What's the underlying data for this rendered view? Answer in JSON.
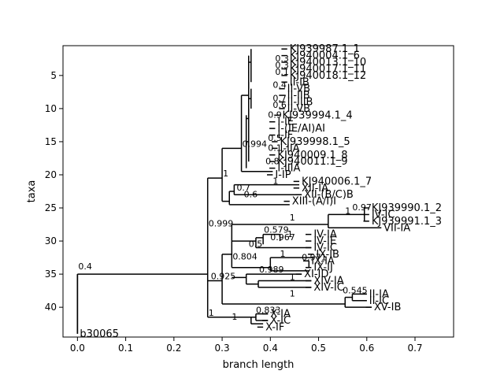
{
  "chart_data": {
    "type": "tree",
    "xlabel": "branch length",
    "ylabel": "taxa",
    "xlim": [
      -0.03,
      0.78
    ],
    "ylim": [
      44.5,
      0.5
    ],
    "xticks": [
      {
        "v": 0.0,
        "label": "0.0"
      },
      {
        "v": 0.1,
        "label": "0.1"
      },
      {
        "v": 0.2,
        "label": "0.2"
      },
      {
        "v": 0.3,
        "label": "0.3"
      },
      {
        "v": 0.4,
        "label": "0.4"
      },
      {
        "v": 0.5,
        "label": "0.5"
      },
      {
        "v": 0.6,
        "label": "0.6"
      },
      {
        "v": 0.7,
        "label": "0.7"
      }
    ],
    "yticks": [
      {
        "v": 5,
        "label": "5"
      },
      {
        "v": 10,
        "label": "10"
      },
      {
        "v": 15,
        "label": "15"
      },
      {
        "v": 20,
        "label": "20"
      },
      {
        "v": 25,
        "label": "25"
      },
      {
        "v": 30,
        "label": "30"
      },
      {
        "v": 35,
        "label": "35"
      },
      {
        "v": 40,
        "label": "40"
      }
    ],
    "leaves": [
      {
        "name": "KJ939987.1_1",
        "x": 0.435,
        "y": 1
      },
      {
        "name": "KJ940004.1_6",
        "x": 0.435,
        "y": 2
      },
      {
        "name": "KJ940013.1_10",
        "x": 0.435,
        "y": 3
      },
      {
        "name": "KJ940017.1_11",
        "x": 0.435,
        "y": 4
      },
      {
        "name": "KJ940018.1_12",
        "x": 0.435,
        "y": 5
      },
      {
        "name": "II-IB",
        "x": 0.435,
        "y": 6
      },
      {
        "name": "II-VB",
        "x": 0.43,
        "y": 7
      },
      {
        "name": "II-IIB",
        "x": 0.43,
        "y": 8
      },
      {
        "name": "II-IIIB",
        "x": 0.43,
        "y": 9
      },
      {
        "name": "II-VB",
        "x": 0.43,
        "y": 10
      },
      {
        "name": "KJ939994.1_4",
        "x": 0.42,
        "y": 11
      },
      {
        "name": "I-IE",
        "x": 0.41,
        "y": 12
      },
      {
        "name": "I-(IE/AI)AI",
        "x": 0.41,
        "y": 13
      },
      {
        "name": "I-IF",
        "x": 0.41,
        "y": 14
      },
      {
        "name": "KJ939998.1_5",
        "x": 0.415,
        "y": 15
      },
      {
        "name": "I-IIA",
        "x": 0.415,
        "y": 16
      },
      {
        "name": "KJ940009.1_8",
        "x": 0.41,
        "y": 17
      },
      {
        "name": "KJ940011.1_9",
        "x": 0.41,
        "y": 18
      },
      {
        "name": "I-IIIA",
        "x": 0.41,
        "y": 19
      },
      {
        "name": "I-IP",
        "x": 0.405,
        "y": 20
      },
      {
        "name": "KJ940006.1_7",
        "x": 0.46,
        "y": 21
      },
      {
        "name": "XII-IA",
        "x": 0.46,
        "y": 22
      },
      {
        "name": "XII-(B/C)B",
        "x": 0.465,
        "y": 23
      },
      {
        "name": "XIII-(A/I)I",
        "x": 0.44,
        "y": 24
      },
      {
        "name": "KJ939990.1_2",
        "x": 0.605,
        "y": 25
      },
      {
        "name": "IV-IC",
        "x": 0.605,
        "y": 26
      },
      {
        "name": "KJ939991.1_3",
        "x": 0.605,
        "y": 27
      },
      {
        "name": "VII-IA",
        "x": 0.63,
        "y": 28
      },
      {
        "name": "IV-IA",
        "x": 0.485,
        "y": 29
      },
      {
        "name": "IV-IE",
        "x": 0.485,
        "y": 30
      },
      {
        "name": "IV-IC",
        "x": 0.485,
        "y": 31
      },
      {
        "name": "IX-IB",
        "x": 0.49,
        "y": 32
      },
      {
        "name": "IX-IA",
        "x": 0.48,
        "y": 33
      },
      {
        "name": "IX-IJ",
        "x": 0.485,
        "y": 34
      },
      {
        "name": "XI-ID",
        "x": 0.465,
        "y": 35
      },
      {
        "name": "XIV-IA",
        "x": 0.485,
        "y": 36
      },
      {
        "name": "XIV-IC",
        "x": 0.485,
        "y": 37
      },
      {
        "name": "II-IA",
        "x": 0.6,
        "y": 38
      },
      {
        "name": "II-IC",
        "x": 0.6,
        "y": 39
      },
      {
        "name": "XV-IB",
        "x": 0.61,
        "y": 40
      },
      {
        "name": "X-IA",
        "x": 0.395,
        "y": 41
      },
      {
        "name": "X-IC",
        "x": 0.395,
        "y": 42
      },
      {
        "name": "X-IF",
        "x": 0.385,
        "y": 43
      },
      {
        "name": "b30065",
        "x": 0.0,
        "y": 44
      }
    ],
    "internal_nodes": [
      {
        "x": 0.0,
        "y0": 35,
        "y1": 44,
        "px": 0.0
      },
      {
        "x": 0.27,
        "y0": 21,
        "y1": 41.5,
        "px": 0.0
      },
      {
        "x": 0.27,
        "y0": 21,
        "y1": 41.5,
        "px": 0.0,
        "label": "0.999",
        "ly": 28
      },
      {
        "x": 0.3,
        "y0": 16,
        "y1": 25,
        "px": 0.27,
        "label": "1",
        "ly": 20.5
      },
      {
        "x": 0.34,
        "y0": 8,
        "y1": 19,
        "px": 0.3,
        "label": "0.994",
        "ly": 16
      },
      {
        "x": 0.275,
        "y0": 25,
        "y1": 35,
        "px": 0.27,
        "label": "0.925",
        "ly": 36
      },
      {
        "x": 0.3,
        "y0": 30,
        "y1": 39.5,
        "px": 0.275
      },
      {
        "x": 0.32,
        "y0": 27,
        "y1": 34,
        "px": 0.3,
        "label": "0.804",
        "ly": 33
      },
      {
        "x": 0.385,
        "y0": 27,
        "y1": 31,
        "px": 0.32,
        "label": "0.579",
        "ly": 29
      },
      {
        "x": 0.375,
        "y0": 35,
        "y1": 36.5,
        "px": 0.35,
        "label": "0.989",
        "ly": 35
      },
      {
        "x": 0.27,
        "y0": 41.5,
        "y1": 42,
        "px": 0.27,
        "label": "1",
        "ly": 41.5
      },
      {
        "x": 0.0,
        "y0": 35,
        "y1": 35,
        "px": 0.0,
        "label": "0.4",
        "ly": 34.5
      }
    ],
    "support_labels": [
      {
        "label": "0.3",
        "x": 0.41,
        "y": 3
      },
      {
        "label": "0.3",
        "x": 0.41,
        "y": 4
      },
      {
        "label": "0.1",
        "x": 0.41,
        "y": 5
      },
      {
        "label": "0.4",
        "x": 0.405,
        "y": 7
      },
      {
        "label": "0.7",
        "x": 0.405,
        "y": 9
      },
      {
        "label": "0.6",
        "x": 0.405,
        "y": 10
      },
      {
        "label": "0.9",
        "x": 0.395,
        "y": 11.5
      },
      {
        "label": "0.5",
        "x": 0.395,
        "y": 15
      },
      {
        "label": "0.1",
        "x": 0.395,
        "y": 16.5
      },
      {
        "label": "0.8",
        "x": 0.39,
        "y": 18.5
      },
      {
        "label": "0.7",
        "x": 0.33,
        "y": 22.5
      },
      {
        "label": "0.6",
        "x": 0.345,
        "y": 23.5
      },
      {
        "label": "1",
        "x": 0.405,
        "y": 21.5
      },
      {
        "label": "0.97",
        "x": 0.57,
        "y": 25.5
      },
      {
        "label": "1",
        "x": 0.555,
        "y": 26
      },
      {
        "label": "1",
        "x": 0.44,
        "y": 27
      },
      {
        "label": "0.967",
        "x": 0.4,
        "y": 30
      },
      {
        "label": "0.5",
        "x": 0.355,
        "y": 31
      },
      {
        "label": "1",
        "x": 0.435,
        "y": 29.5
      },
      {
        "label": "1",
        "x": 0.42,
        "y": 32.5
      },
      {
        "label": "0.971",
        "x": 0.465,
        "y": 33
      },
      {
        "label": "1",
        "x": 0.44,
        "y": 36
      },
      {
        "label": "1",
        "x": 0.44,
        "y": 38.5
      },
      {
        "label": "0.545",
        "x": 0.55,
        "y": 38
      },
      {
        "label": "0.833",
        "x": 0.37,
        "y": 41
      },
      {
        "label": "1",
        "x": 0.32,
        "y": 42
      }
    ]
  }
}
